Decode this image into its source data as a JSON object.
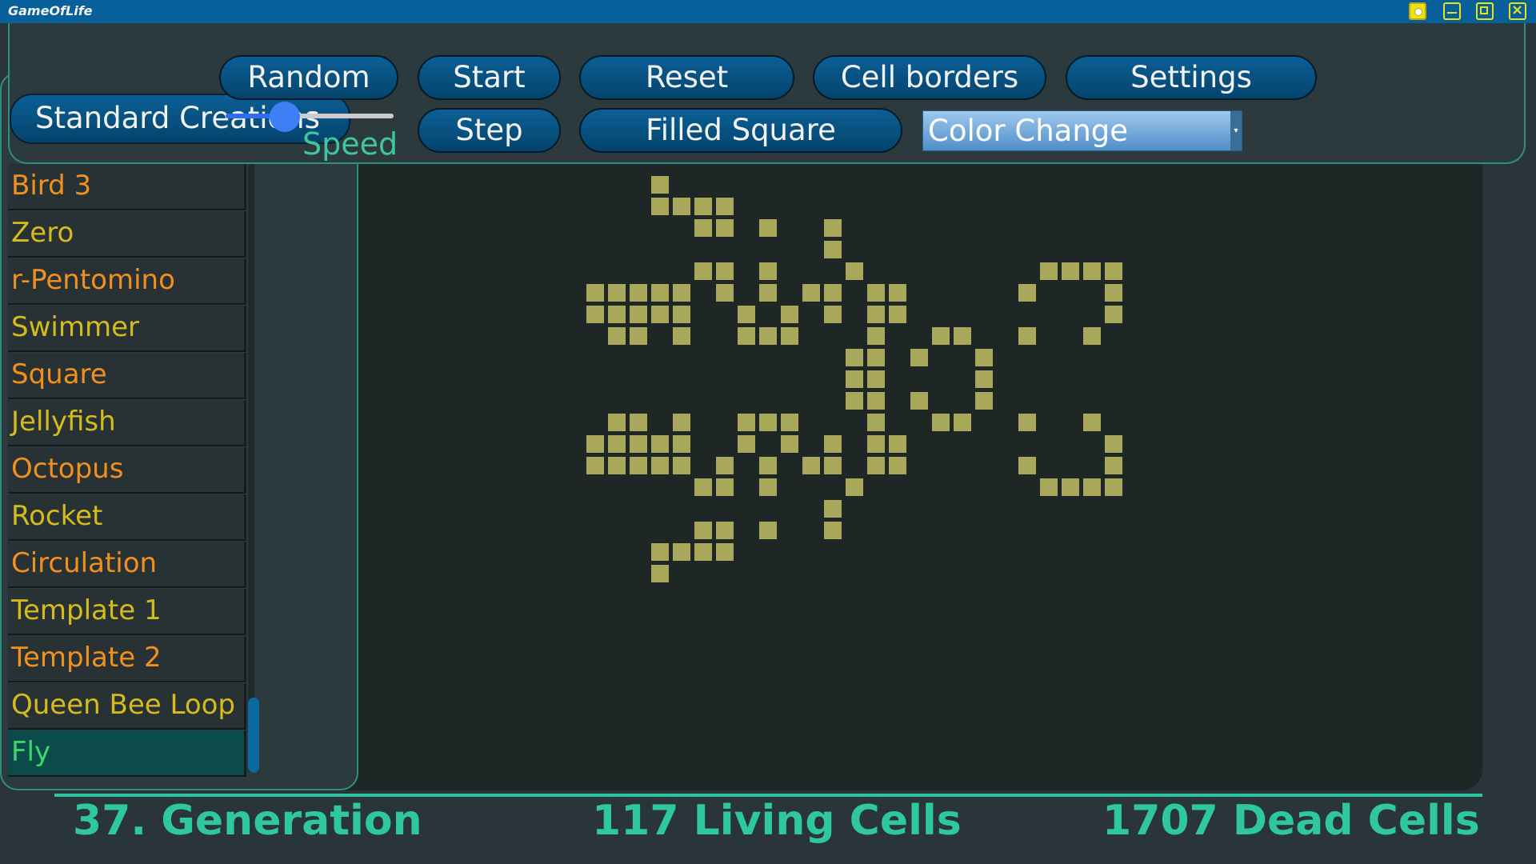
{
  "window": {
    "title": "GameOfLife"
  },
  "titlebar_icons": [
    "settings-icon",
    "minimize-icon",
    "maximize-icon",
    "close-icon"
  ],
  "toolbar": {
    "random": "Random",
    "start": "Start",
    "reset": "Reset",
    "cell_borders": "Cell borders",
    "settings": "Settings",
    "step": "Step",
    "filled_square": "Filled Square",
    "color_change": "Color Change",
    "speed_label": "Speed",
    "speed_value": 0.35
  },
  "sidebar": {
    "header": "Standard Creations",
    "items": [
      {
        "label": "Bird 3",
        "color": "orange"
      },
      {
        "label": "Zero",
        "color": "yellow"
      },
      {
        "label": "r-Pentomino",
        "color": "orange"
      },
      {
        "label": "Swimmer",
        "color": "yellow"
      },
      {
        "label": "Square",
        "color": "orange"
      },
      {
        "label": "Jellyfish",
        "color": "yellow"
      },
      {
        "label": "Octopus",
        "color": "orange"
      },
      {
        "label": "Rocket",
        "color": "yellow"
      },
      {
        "label": "Circulation",
        "color": "orange"
      },
      {
        "label": "Template 1",
        "color": "yellow"
      },
      {
        "label": "Template 2",
        "color": "orange"
      },
      {
        "label": "Queen Bee Loop",
        "color": "yellow"
      },
      {
        "label": "Fly",
        "color": "selected"
      }
    ]
  },
  "board": {
    "cell_color": "#a9a85a",
    "living_cells": [
      [
        3,
        0
      ],
      [
        3,
        1
      ],
      [
        4,
        1
      ],
      [
        5,
        1
      ],
      [
        6,
        1
      ],
      [
        5,
        2
      ],
      [
        6,
        2
      ],
      [
        8,
        2
      ],
      [
        11,
        2
      ],
      [
        11,
        3
      ],
      [
        5,
        4
      ],
      [
        6,
        4
      ],
      [
        8,
        4
      ],
      [
        12,
        4
      ],
      [
        21,
        4
      ],
      [
        22,
        4
      ],
      [
        23,
        4
      ],
      [
        24,
        4
      ],
      [
        0,
        5
      ],
      [
        1,
        5
      ],
      [
        2,
        5
      ],
      [
        3,
        5
      ],
      [
        4,
        5
      ],
      [
        6,
        5
      ],
      [
        8,
        5
      ],
      [
        10,
        5
      ],
      [
        11,
        5
      ],
      [
        13,
        5
      ],
      [
        14,
        5
      ],
      [
        20,
        5
      ],
      [
        24,
        5
      ],
      [
        0,
        6
      ],
      [
        1,
        6
      ],
      [
        2,
        6
      ],
      [
        3,
        6
      ],
      [
        4,
        6
      ],
      [
        7,
        6
      ],
      [
        9,
        6
      ],
      [
        11,
        6
      ],
      [
        13,
        6
      ],
      [
        14,
        6
      ],
      [
        24,
        6
      ],
      [
        1,
        7
      ],
      [
        2,
        7
      ],
      [
        4,
        7
      ],
      [
        7,
        7
      ],
      [
        8,
        7
      ],
      [
        9,
        7
      ],
      [
        13,
        7
      ],
      [
        16,
        7
      ],
      [
        17,
        7
      ],
      [
        20,
        7
      ],
      [
        23,
        7
      ],
      [
        12,
        8
      ],
      [
        13,
        8
      ],
      [
        15,
        8
      ],
      [
        18,
        8
      ],
      [
        12,
        9
      ],
      [
        13,
        9
      ],
      [
        18,
        9
      ],
      [
        12,
        10
      ],
      [
        13,
        10
      ],
      [
        15,
        10
      ],
      [
        18,
        10
      ],
      [
        1,
        11
      ],
      [
        2,
        11
      ],
      [
        4,
        11
      ],
      [
        7,
        11
      ],
      [
        8,
        11
      ],
      [
        9,
        11
      ],
      [
        13,
        11
      ],
      [
        16,
        11
      ],
      [
        17,
        11
      ],
      [
        20,
        11
      ],
      [
        23,
        11
      ],
      [
        0,
        12
      ],
      [
        1,
        12
      ],
      [
        2,
        12
      ],
      [
        3,
        12
      ],
      [
        4,
        12
      ],
      [
        7,
        12
      ],
      [
        9,
        12
      ],
      [
        11,
        12
      ],
      [
        13,
        12
      ],
      [
        14,
        12
      ],
      [
        24,
        12
      ],
      [
        0,
        13
      ],
      [
        1,
        13
      ],
      [
        2,
        13
      ],
      [
        3,
        13
      ],
      [
        4,
        13
      ],
      [
        6,
        13
      ],
      [
        8,
        13
      ],
      [
        10,
        13
      ],
      [
        11,
        13
      ],
      [
        13,
        13
      ],
      [
        14,
        13
      ],
      [
        20,
        13
      ],
      [
        24,
        13
      ],
      [
        5,
        14
      ],
      [
        6,
        14
      ],
      [
        8,
        14
      ],
      [
        12,
        14
      ],
      [
        21,
        14
      ],
      [
        22,
        14
      ],
      [
        23,
        14
      ],
      [
        24,
        14
      ],
      [
        11,
        15
      ],
      [
        5,
        16
      ],
      [
        6,
        16
      ],
      [
        8,
        16
      ],
      [
        11,
        16
      ],
      [
        3,
        17
      ],
      [
        4,
        17
      ],
      [
        5,
        17
      ],
      [
        6,
        17
      ],
      [
        3,
        18
      ]
    ]
  },
  "status": {
    "generation": "37. Generation",
    "living": "117 Living Cells",
    "dead": "1707 Dead Cells"
  }
}
